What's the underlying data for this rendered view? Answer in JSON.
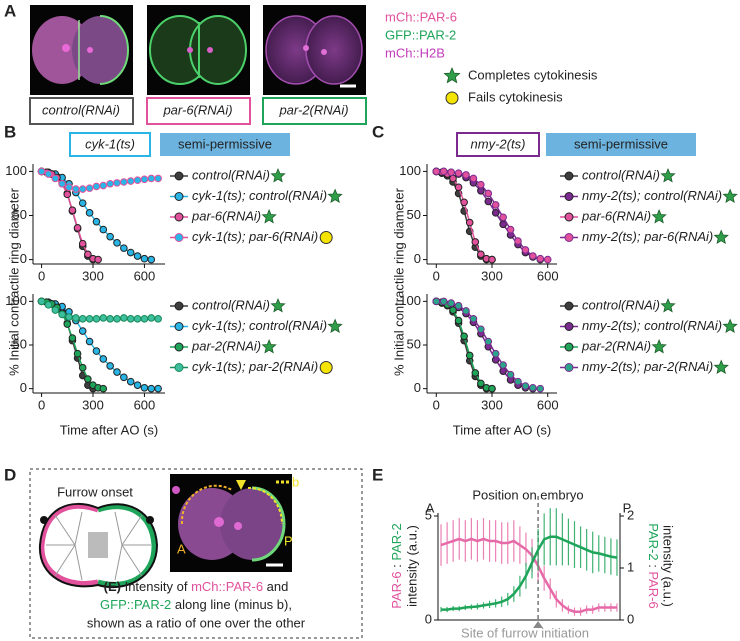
{
  "panel_labels": [
    "A",
    "B",
    "C",
    "D",
    "E"
  ],
  "panel_a": {
    "channels": [
      "mCh::PAR-6",
      "GFP::PAR-2",
      "mCh::H2B"
    ],
    "conditions": [
      "control(RNAi)",
      "par-6(RNAi)",
      "par-2(RNAi)"
    ],
    "key": [
      "Completes cytokinesis",
      "Fails cytokinesis"
    ]
  },
  "panel_b": {
    "strain": "cyk-1(ts)",
    "condition": "semi-permissive",
    "ylabel": "% Initial contractile ring diameter"
  },
  "panel_c": {
    "strain": "nmy-2(ts)",
    "condition": "semi-permissive",
    "ylabel": "% Initial contractile ring diameter"
  },
  "panel_d": {
    "title": "Furrow onset",
    "labels": [
      "A",
      "P",
      "b"
    ],
    "caption": [
      [
        "(E)",
        " Intensity of ",
        "mCh::PAR-6",
        " and"
      ],
      [
        "GFP::PAR-2",
        " along line (minus b),"
      ],
      [
        "shown as a ratio of one over the other"
      ]
    ]
  },
  "chart_data": [
    {
      "type": "line",
      "markers": true,
      "legend": true,
      "xlim": [
        -50,
        720
      ],
      "ylim": [
        -5,
        105
      ],
      "xticks": [
        0,
        300,
        600
      ],
      "yticks": [
        0,
        50,
        100
      ],
      "series": [
        {
          "name": "control(RNAi)",
          "color": "#3d3d3d",
          "marker_fill": "#3d3d3d",
          "outcome": "star",
          "x": [
            0,
            30,
            60,
            90,
            120,
            150,
            180,
            210,
            240,
            270,
            300
          ],
          "values": [
            100,
            99,
            97,
            94,
            88,
            75,
            55,
            35,
            15,
            4,
            0
          ]
        },
        {
          "name": "cyk-1(ts); control(RNAi)",
          "color": "#29b6e6",
          "marker_fill": "#29b6e6",
          "outcome": "star",
          "x": [
            0,
            40,
            80,
            120,
            160,
            200,
            240,
            280,
            320,
            360,
            400,
            440,
            480,
            520,
            560,
            600,
            640
          ],
          "values": [
            100,
            99,
            97,
            93,
            86,
            76,
            64,
            53,
            43,
            34,
            26,
            19,
            13,
            8,
            4,
            1,
            0
          ]
        },
        {
          "name": "par-6(RNAi)",
          "color": "#e2519c",
          "marker_fill": "#e2519c",
          "outcome": "star",
          "x": [
            0,
            30,
            60,
            90,
            120,
            150,
            180,
            210,
            240,
            270,
            300,
            330
          ],
          "values": [
            100,
            99,
            97,
            93,
            86,
            74,
            56,
            36,
            18,
            6,
            1,
            0
          ]
        },
        {
          "name": "cyk-1(ts); par-6(RNAi)",
          "color": "#e2519c",
          "marker_fill": "#29b6e6",
          "outcome": "circle",
          "x": [
            0,
            40,
            80,
            120,
            160,
            200,
            240,
            280,
            320,
            360,
            400,
            440,
            480,
            520,
            560,
            600,
            640,
            680
          ],
          "values": [
            100,
            97,
            92,
            86,
            82,
            80,
            80,
            81,
            83,
            84,
            86,
            87,
            88,
            89,
            90,
            91,
            92,
            92
          ]
        }
      ]
    },
    {
      "type": "line",
      "markers": true,
      "legend": true,
      "xlim": [
        -50,
        720
      ],
      "ylim": [
        -5,
        105
      ],
      "xticks": [
        0,
        300,
        600
      ],
      "yticks": [
        0,
        50,
        100
      ],
      "xlabel": "Time after AO (s)",
      "series": [
        {
          "name": "control(RNAi)",
          "color": "#3d3d3d",
          "marker_fill": "#3d3d3d",
          "outcome": "star",
          "x": [
            0,
            30,
            60,
            90,
            120,
            150,
            180,
            210,
            240,
            270,
            300
          ],
          "values": [
            100,
            99,
            97,
            94,
            88,
            75,
            55,
            35,
            15,
            4,
            0
          ]
        },
        {
          "name": "cyk-1(ts); control(RNAi)",
          "color": "#29b6e6",
          "marker_fill": "#29b6e6",
          "outcome": "star",
          "x": [
            0,
            40,
            80,
            120,
            160,
            200,
            240,
            280,
            320,
            360,
            400,
            440,
            480,
            520,
            560,
            600,
            640,
            680
          ],
          "values": [
            100,
            99,
            97,
            94,
            88,
            78,
            66,
            54,
            43,
            34,
            26,
            19,
            13,
            8,
            4,
            1,
            0,
            0
          ]
        },
        {
          "name": "par-2(RNAi)",
          "color": "#1ea55a",
          "marker_fill": "#1ea55a",
          "outcome": "star",
          "x": [
            0,
            30,
            60,
            90,
            120,
            150,
            180,
            210,
            240,
            270,
            300,
            330,
            360
          ],
          "values": [
            100,
            99,
            97,
            93,
            86,
            74,
            58,
            40,
            24,
            11,
            4,
            1,
            0
          ]
        },
        {
          "name": "cyk-1(ts); par-2(RNAi)",
          "color": "#1a8a5a",
          "marker_fill": "#3bbf9c",
          "outcome": "circle",
          "x": [
            0,
            40,
            80,
            120,
            160,
            200,
            240,
            280,
            320,
            360,
            400,
            440,
            480,
            520,
            560,
            600,
            640,
            680
          ],
          "values": [
            100,
            96,
            90,
            85,
            82,
            81,
            80,
            80,
            80,
            81,
            80,
            80,
            81,
            80,
            80,
            80,
            81,
            80
          ]
        }
      ]
    },
    {
      "type": "line",
      "markers": true,
      "legend": true,
      "xlim": [
        -50,
        650
      ],
      "ylim": [
        -5,
        105
      ],
      "xticks": [
        0,
        300,
        600
      ],
      "yticks": [
        0,
        50,
        100
      ],
      "series": [
        {
          "name": "control(RNAi)",
          "color": "#3d3d3d",
          "marker_fill": "#3d3d3d",
          "outcome": "star",
          "x": [
            0,
            30,
            60,
            90,
            120,
            150,
            180,
            210,
            240,
            270,
            300
          ],
          "values": [
            100,
            98,
            95,
            88,
            75,
            55,
            32,
            14,
            4,
            0,
            0
          ]
        },
        {
          "name": "nmy-2(ts); control(RNAi)",
          "color": "#7b2a90",
          "marker_fill": "#7b2a90",
          "outcome": "star",
          "x": [
            0,
            40,
            80,
            120,
            160,
            200,
            240,
            280,
            320,
            360,
            400,
            440,
            480,
            520,
            560
          ],
          "values": [
            100,
            100,
            99,
            97,
            93,
            87,
            78,
            66,
            53,
            40,
            28,
            17,
            8,
            3,
            0
          ]
        },
        {
          "name": "par-6(RNAi)",
          "color": "#e2519c",
          "marker_fill": "#e2519c",
          "outcome": "star",
          "x": [
            0,
            30,
            60,
            90,
            120,
            150,
            180,
            210,
            240,
            270,
            300
          ],
          "values": [
            100,
            99,
            97,
            92,
            82,
            65,
            42,
            20,
            6,
            1,
            0
          ]
        },
        {
          "name": "nmy-2(ts); par-6(RNAi)",
          "color": "#7b2a90",
          "marker_fill": "#e2519c",
          "outcome": "star",
          "x": [
            0,
            40,
            80,
            120,
            160,
            200,
            240,
            280,
            320,
            360,
            400,
            440,
            480,
            520,
            560,
            600
          ],
          "values": [
            100,
            100,
            99,
            98,
            96,
            92,
            85,
            75,
            62,
            48,
            34,
            21,
            11,
            4,
            1,
            0
          ]
        }
      ]
    },
    {
      "type": "line",
      "markers": true,
      "legend": true,
      "xlim": [
        -50,
        650
      ],
      "ylim": [
        -5,
        105
      ],
      "xticks": [
        0,
        300,
        600
      ],
      "yticks": [
        0,
        50,
        100
      ],
      "xlabel": "Time after AO (s)",
      "series": [
        {
          "name": "control(RNAi)",
          "color": "#3d3d3d",
          "marker_fill": "#3d3d3d",
          "outcome": "star",
          "x": [
            0,
            30,
            60,
            90,
            120,
            150,
            180,
            210,
            240,
            270,
            300
          ],
          "values": [
            100,
            98,
            95,
            88,
            75,
            55,
            32,
            14,
            4,
            0,
            0
          ]
        },
        {
          "name": "nmy-2(ts); control(RNAi)",
          "color": "#7b2a90",
          "marker_fill": "#7b2a90",
          "outcome": "star",
          "x": [
            0,
            40,
            80,
            120,
            160,
            200,
            240,
            280,
            320,
            360,
            400,
            440,
            480,
            520
          ],
          "values": [
            100,
            99,
            97,
            93,
            86,
            76,
            63,
            48,
            33,
            20,
            10,
            4,
            1,
            0
          ]
        },
        {
          "name": "par-2(RNAi)",
          "color": "#1ea55a",
          "marker_fill": "#1ea55a",
          "outcome": "star",
          "x": [
            0,
            30,
            60,
            90,
            120,
            150,
            180,
            210,
            240,
            270,
            300
          ],
          "values": [
            100,
            99,
            96,
            90,
            78,
            60,
            38,
            18,
            6,
            1,
            0
          ]
        },
        {
          "name": "nmy-2(ts); par-2(RNAi)",
          "color": "#7b2a90",
          "marker_fill": "#2aa58a",
          "outcome": "star",
          "x": [
            0,
            40,
            80,
            120,
            160,
            200,
            240,
            280,
            320,
            360,
            400,
            440,
            480,
            520,
            560
          ],
          "values": [
            100,
            100,
            98,
            95,
            89,
            80,
            68,
            54,
            40,
            27,
            16,
            8,
            3,
            1,
            0
          ]
        }
      ]
    },
    {
      "type": "line",
      "markers": false,
      "legend": false,
      "title": "Position on embryo",
      "x_start_label": "A",
      "x_end_label": "P",
      "annotation": "Site of furrow initiation",
      "furrow_x": 16,
      "ylabel": [
        "PAR-6",
        " : ",
        "PAR-2"
      ],
      "ylabel_colors": [
        "#e2519c",
        "#222222",
        "#1ea55a"
      ],
      "ylabel_line2": "intensity (a.u.)",
      "y2label": [
        "PAR-2",
        " : ",
        "PAR-6"
      ],
      "y2label_colors": [
        "#1ea55a",
        "#222222",
        "#e2519c"
      ],
      "y2label_line2": "intensity (a.u.)",
      "xlim": [
        -0.5,
        29.5
      ],
      "ylim": [
        0,
        5
      ],
      "yticks": [
        0,
        5
      ],
      "y2lim": [
        0,
        2
      ],
      "y2ticks": [
        0,
        1,
        2
      ],
      "x": [
        0,
        1,
        2,
        3,
        4,
        5,
        6,
        7,
        8,
        9,
        10,
        11,
        12,
        13,
        14,
        15,
        16,
        17,
        18,
        19,
        20,
        21,
        22,
        23,
        24,
        25,
        26,
        27,
        28,
        29
      ],
      "series": [
        {
          "name": "PAR-6 : PAR-2",
          "color": "#e76aa8",
          "values": [
            3.6,
            3.7,
            3.8,
            3.9,
            3.8,
            3.9,
            3.8,
            3.9,
            3.8,
            3.8,
            3.7,
            3.7,
            3.8,
            3.6,
            3.4,
            3.1,
            2.6,
            2.0,
            1.5,
            1.0,
            0.7,
            0.5,
            0.4,
            0.4,
            0.5,
            0.5,
            0.6,
            0.6,
            0.6,
            0.6
          ],
          "errors": [
            1.0,
            1.0,
            1.0,
            1.0,
            1.0,
            1.0,
            1.0,
            1.0,
            1.0,
            1.0,
            1.0,
            1.0,
            1.0,
            0.9,
            0.8,
            0.8,
            0.7,
            0.6,
            0.5,
            0.4,
            0.3,
            0.2,
            0.2,
            0.2,
            0.2,
            0.2,
            0.2,
            0.2,
            0.2,
            0.2
          ]
        },
        {
          "name": "PAR-2 : PAR-6",
          "color": "#1ea55a",
          "axis": "y2",
          "values": [
            0.2,
            0.2,
            0.22,
            0.22,
            0.24,
            0.25,
            0.26,
            0.28,
            0.3,
            0.32,
            0.35,
            0.4,
            0.5,
            0.65,
            0.85,
            1.1,
            1.35,
            1.55,
            1.6,
            1.6,
            1.55,
            1.5,
            1.45,
            1.4,
            1.35,
            1.3,
            1.28,
            1.25,
            1.22,
            1.2
          ],
          "errors": [
            0.05,
            0.05,
            0.05,
            0.05,
            0.05,
            0.05,
            0.06,
            0.06,
            0.07,
            0.08,
            0.1,
            0.12,
            0.15,
            0.2,
            0.25,
            0.3,
            0.4,
            0.5,
            0.55,
            0.55,
            0.5,
            0.45,
            0.45,
            0.4,
            0.4,
            0.4,
            0.35,
            0.35,
            0.35,
            0.35
          ]
        }
      ]
    }
  ]
}
